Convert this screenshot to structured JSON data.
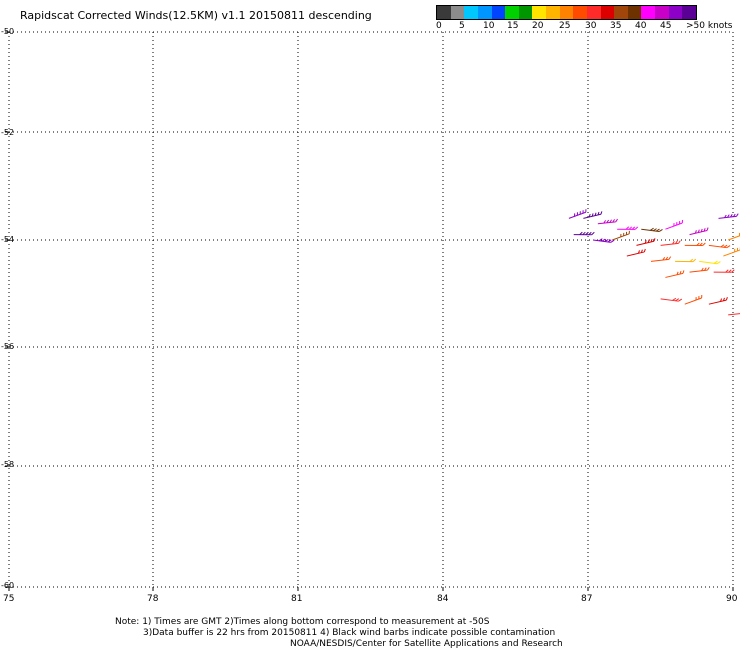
{
  "title": "Rapidscat Corrected Winds(12.5KM) v1.1 20150811 descending",
  "colorbar": {
    "colors": [
      "#3a3a3a",
      "#8c8c8c",
      "#00c8ff",
      "#0096ff",
      "#0044ff",
      "#00d200",
      "#009600",
      "#ffe400",
      "#ffb400",
      "#ff8200",
      "#ff4b00",
      "#ff2a2a",
      "#dc0000",
      "#a0460a",
      "#6e3200",
      "#ff00ff",
      "#c800c8",
      "#8c00c8",
      "#5a0096"
    ],
    "tick_labels": [
      "0",
      "5",
      "10",
      "15",
      "20",
      "25",
      "30",
      "35",
      "40",
      "45",
      ">50 knots"
    ]
  },
  "map": {
    "x_ticks": [
      "75",
      "78",
      "81",
      "84",
      "87",
      "90"
    ],
    "y_ticks": [
      "-50",
      "-52",
      "-54",
      "-56",
      "-58",
      "-60"
    ],
    "lon_range": [
      75,
      90
    ],
    "lat_range": [
      -60,
      -50
    ]
  },
  "wind_barbs": [
    {
      "lon": 86.6,
      "lat": -53.6,
      "speed": 48
    },
    {
      "lon": 86.9,
      "lat": -53.6,
      "speed": 50
    },
    {
      "lon": 87.2,
      "lat": -53.7,
      "speed": 46
    },
    {
      "lon": 87.6,
      "lat": -53.8,
      "speed": 42
    },
    {
      "lon": 88.1,
      "lat": -53.8,
      "speed": 40
    },
    {
      "lon": 88.6,
      "lat": -53.8,
      "speed": 44
    },
    {
      "lon": 89.1,
      "lat": -53.9,
      "speed": 45
    },
    {
      "lon": 89.7,
      "lat": -53.6,
      "speed": 48
    },
    {
      "lon": 86.7,
      "lat": -53.9,
      "speed": 52
    },
    {
      "lon": 87.1,
      "lat": -54.0,
      "speed": 48
    },
    {
      "lon": 87.5,
      "lat": -54.0,
      "speed": 38
    },
    {
      "lon": 88.0,
      "lat": -54.1,
      "speed": 36
    },
    {
      "lon": 88.5,
      "lat": -54.1,
      "speed": 32
    },
    {
      "lon": 89.0,
      "lat": -54.1,
      "speed": 30
    },
    {
      "lon": 89.5,
      "lat": -54.1,
      "speed": 28
    },
    {
      "lon": 89.9,
      "lat": -54.0,
      "speed": 26
    },
    {
      "lon": 87.8,
      "lat": -54.3,
      "speed": 34
    },
    {
      "lon": 88.3,
      "lat": -54.4,
      "speed": 28
    },
    {
      "lon": 88.8,
      "lat": -54.4,
      "speed": 24
    },
    {
      "lon": 89.3,
      "lat": -54.4,
      "speed": 22
    },
    {
      "lon": 89.8,
      "lat": -54.3,
      "speed": 26
    },
    {
      "lon": 88.6,
      "lat": -54.7,
      "speed": 30
    },
    {
      "lon": 89.1,
      "lat": -54.6,
      "speed": 28
    },
    {
      "lon": 89.6,
      "lat": -54.6,
      "speed": 32
    },
    {
      "lon": 88.5,
      "lat": -55.1,
      "speed": 33
    },
    {
      "lon": 89.0,
      "lat": -55.2,
      "speed": 30
    },
    {
      "lon": 89.5,
      "lat": -55.2,
      "speed": 34
    },
    {
      "lon": 89.9,
      "lat": -55.4,
      "speed": 31
    }
  ],
  "notes": [
    "Note: 1) Times are GMT 2)Times along bottom correspond to measurement at -50S",
    "3)Data buffer is 22 hrs from 20150811 4) Black wind barbs indicate possible contamination",
    "NOAA/NESDIS/Center for Satellite Applications and Research"
  ]
}
